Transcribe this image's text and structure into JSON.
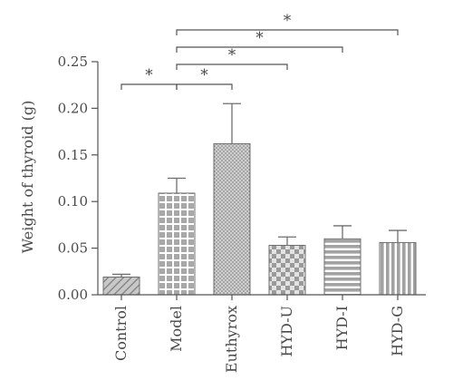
{
  "chart_data": {
    "type": "bar",
    "ylabel": "Weight of thyroid (g)",
    "ylim": [
      0,
      0.25
    ],
    "yticks": [
      "0.00",
      "0.05",
      "0.10",
      "0.15",
      "0.20",
      "0.25"
    ],
    "categories": [
      "Control",
      "Model",
      "Euthyrox",
      "HYD-U",
      "HYD-I",
      "HYD-G"
    ],
    "values": [
      0.019,
      0.109,
      0.162,
      0.053,
      0.06,
      0.056
    ],
    "errors": [
      0.003,
      0.016,
      0.043,
      0.009,
      0.014,
      0.013
    ],
    "patterns": [
      "diagonal-hatch",
      "grid",
      "dots",
      "checker",
      "horizontal-lines",
      "vertical-lines"
    ],
    "bar_color": "#a6a6a6",
    "significance": [
      {
        "from": "Control",
        "to": "Model",
        "label": "*"
      },
      {
        "from": "Model",
        "to": "Euthyrox",
        "label": "*"
      },
      {
        "from": "Model",
        "to": "HYD-U",
        "label": "*"
      },
      {
        "from": "Model",
        "to": "HYD-I",
        "label": "*"
      },
      {
        "from": "Model",
        "to": "HYD-G",
        "label": "*"
      }
    ]
  }
}
